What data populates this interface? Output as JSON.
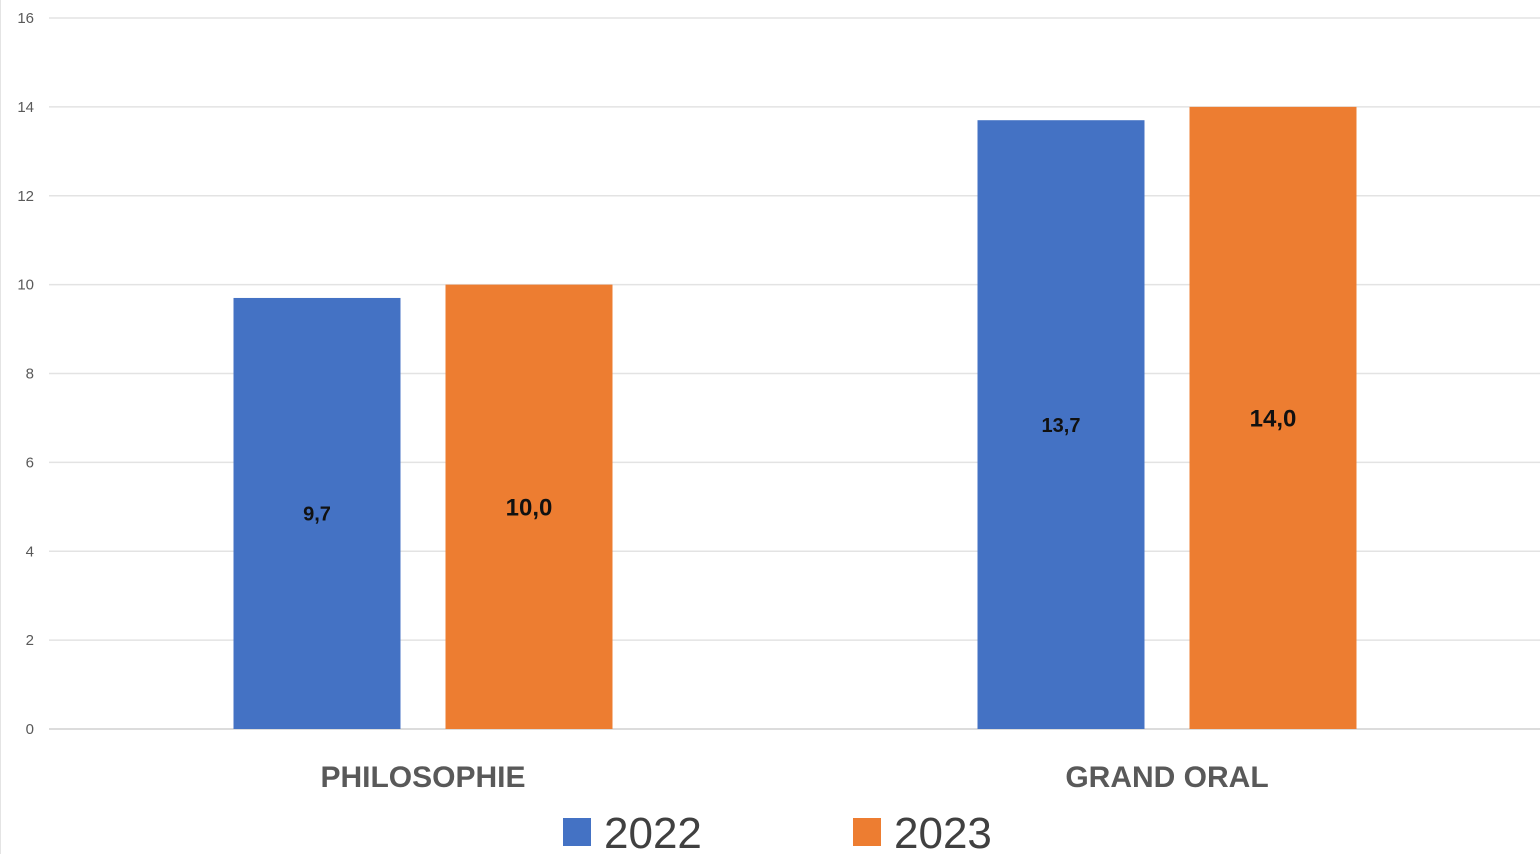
{
  "chart_data": {
    "type": "bar",
    "categories": [
      "PHILOSOPHIE",
      "GRAND ORAL"
    ],
    "series": [
      {
        "name": "2022",
        "values": [
          9.7,
          13.7
        ],
        "labels": [
          "9,7",
          "13,7"
        ],
        "color": "#4472C4"
      },
      {
        "name": "2023",
        "values": [
          10.0,
          14.0
        ],
        "labels": [
          "10,0",
          "14,0"
        ],
        "color": "#ED7D31"
      }
    ],
    "ylim": [
      0,
      16
    ],
    "yticks": [
      0,
      2,
      4,
      6,
      8,
      10,
      12,
      14,
      16
    ],
    "grid": true,
    "legend": "bottom",
    "title": "",
    "xlabel": "",
    "ylabel": ""
  }
}
